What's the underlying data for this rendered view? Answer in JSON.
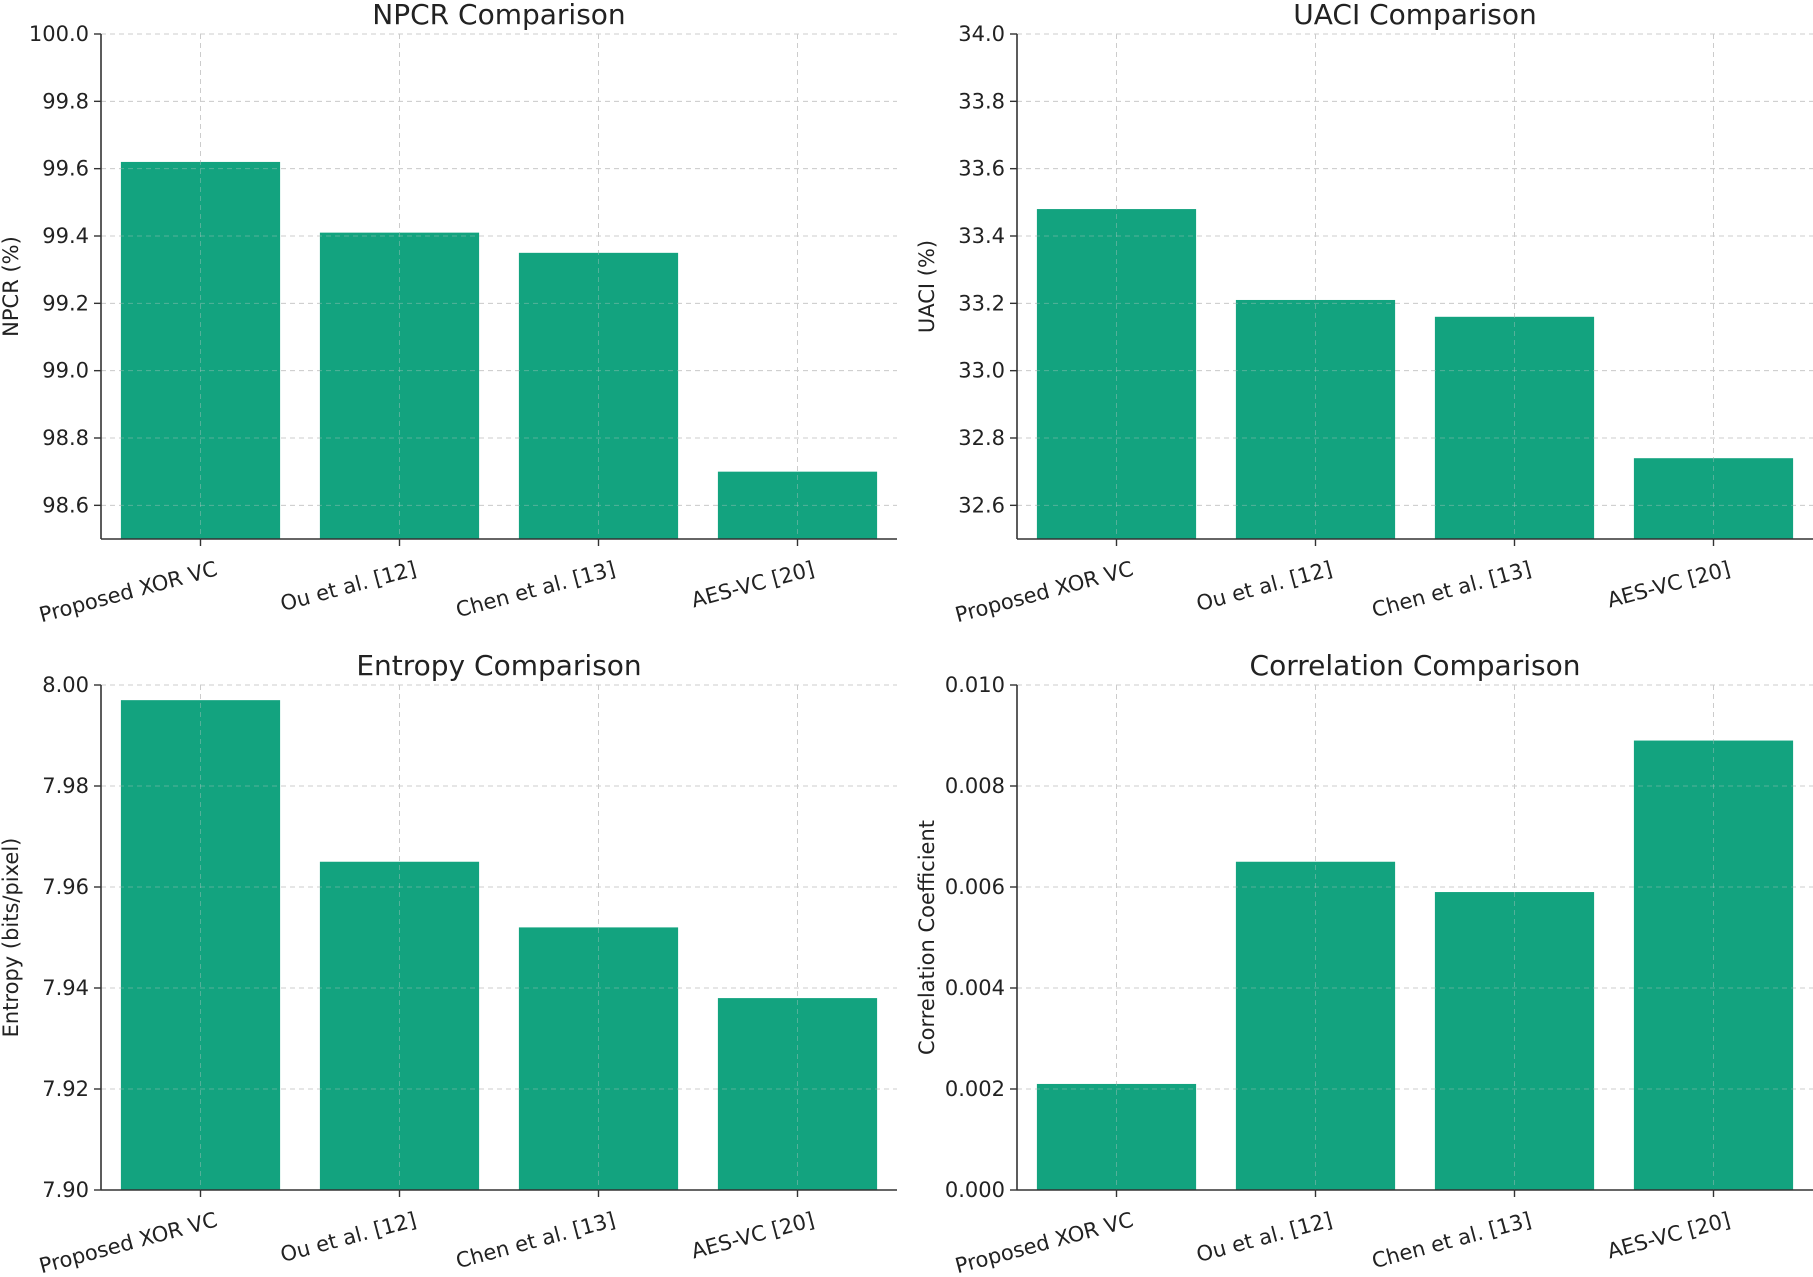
{
  "chart_data": [
    {
      "type": "bar",
      "title": "NPCR Comparison",
      "xlabel": "",
      "ylabel": "NPCR (%)",
      "categories": [
        "Proposed XOR VC",
        "Ou et al. [12]",
        "Chen et al. [13]",
        "AES-VC [20]"
      ],
      "values": [
        99.62,
        99.41,
        99.35,
        98.7
      ],
      "ylim": [
        98.5,
        100.0
      ],
      "yticks": [
        "98.6",
        "98.8",
        "99.0",
        "99.2",
        "99.4",
        "99.6",
        "99.8",
        "100.0"
      ],
      "grid": true
    },
    {
      "type": "bar",
      "title": "UACI Comparison",
      "xlabel": "",
      "ylabel": "UACI (%)",
      "categories": [
        "Proposed XOR VC",
        "Ou et al. [12]",
        "Chen et al. [13]",
        "AES-VC [20]"
      ],
      "values": [
        33.48,
        33.21,
        33.16,
        32.74
      ],
      "ylim": [
        32.5,
        34.0
      ],
      "yticks": [
        "32.6",
        "32.8",
        "33.0",
        "33.2",
        "33.4",
        "33.6",
        "33.8",
        "34.0"
      ],
      "grid": true
    },
    {
      "type": "bar",
      "title": "Entropy Comparison",
      "xlabel": "",
      "ylabel": "Entropy (bits/pixel)",
      "categories": [
        "Proposed XOR VC",
        "Ou et al. [12]",
        "Chen et al. [13]",
        "AES-VC [20]"
      ],
      "values": [
        7.997,
        7.965,
        7.952,
        7.938
      ],
      "ylim": [
        7.9,
        8.0
      ],
      "yticks": [
        "7.90",
        "7.92",
        "7.94",
        "7.96",
        "7.98",
        "8.00"
      ],
      "grid": true
    },
    {
      "type": "bar",
      "title": "Correlation Comparison",
      "xlabel": "",
      "ylabel": "Correlation Coefficient",
      "categories": [
        "Proposed XOR VC",
        "Ou et al. [12]",
        "Chen et al. [13]",
        "AES-VC [20]"
      ],
      "values": [
        0.0021,
        0.0065,
        0.0059,
        0.0089
      ],
      "ylim": [
        0.0,
        0.01
      ],
      "yticks": [
        "0.000",
        "0.002",
        "0.004",
        "0.006",
        "0.008",
        "0.010"
      ],
      "grid": true
    }
  ],
  "colors": {
    "bar": "#13a37f"
  }
}
